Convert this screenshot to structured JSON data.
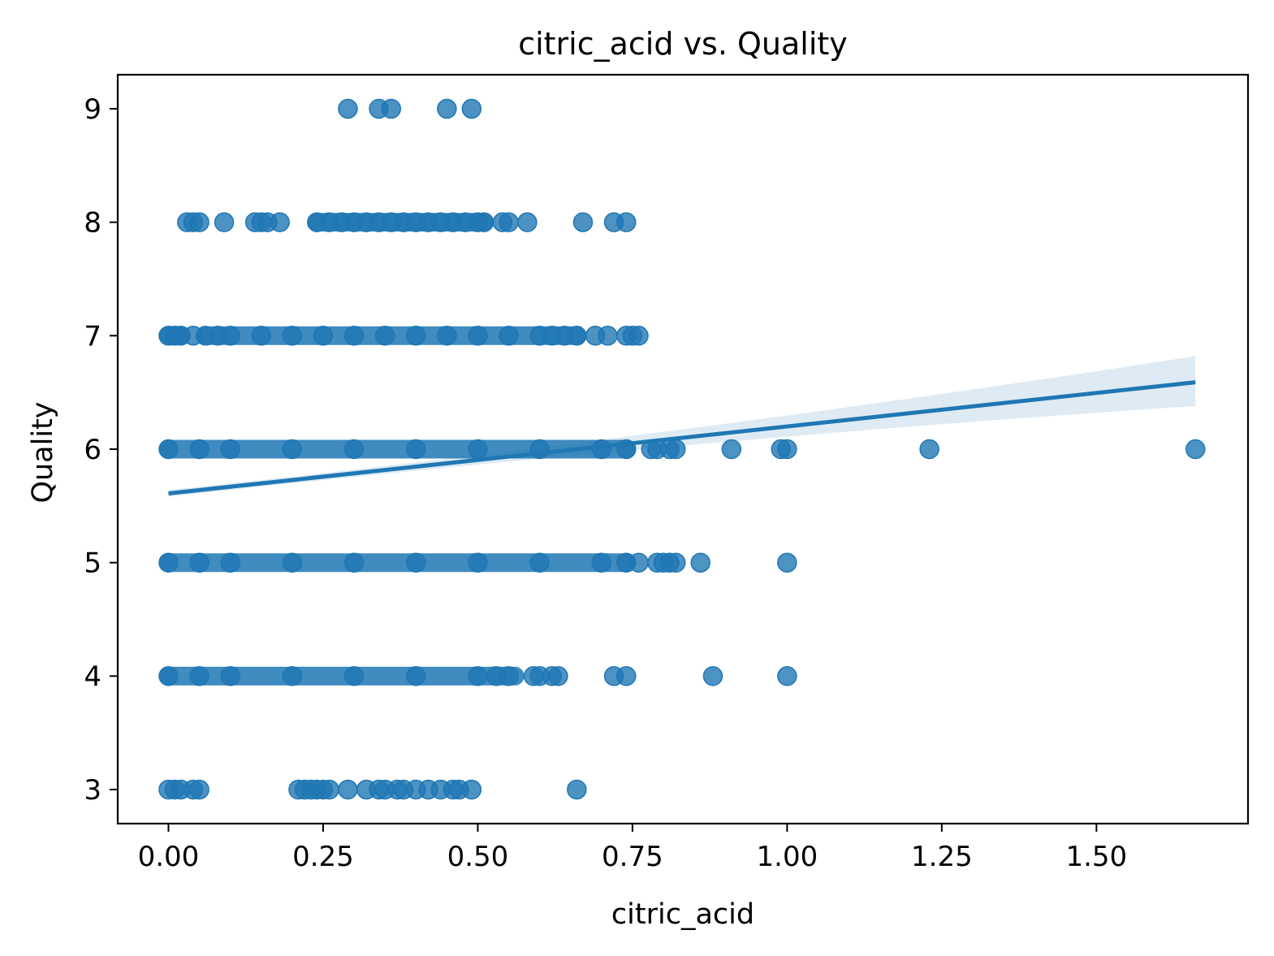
{
  "chart_data": {
    "type": "scatter",
    "title": "citric_acid vs. Quality",
    "xlabel": "citric_acid",
    "ylabel": "Quality",
    "xlim": [
      -0.082,
      1.745
    ],
    "ylim": [
      2.7,
      9.3
    ],
    "x_ticks": [
      0.0,
      0.25,
      0.5,
      0.75,
      1.0,
      1.25,
      1.5
    ],
    "x_tick_labels": [
      "0.00",
      "0.25",
      "0.50",
      "0.75",
      "1.00",
      "1.25",
      "1.50"
    ],
    "y_ticks": [
      3,
      4,
      5,
      6,
      7,
      8,
      9
    ],
    "y_tick_labels": [
      "3",
      "4",
      "5",
      "6",
      "7",
      "8",
      "9"
    ],
    "grid": false,
    "legend": "none",
    "colors": {
      "points": "#1f77b4",
      "line": "#1f77b4",
      "band": "#1f77b4"
    },
    "series": [
      {
        "quality": 9,
        "dense_ranges": [],
        "x": [
          0.29,
          0.34,
          0.36,
          0.45,
          0.49
        ]
      },
      {
        "quality": 8,
        "dense_ranges": [
          [
            0.24,
            0.51
          ]
        ],
        "x": [
          0.03,
          0.04,
          0.05,
          0.09,
          0.14,
          0.15,
          0.16,
          0.18,
          0.24,
          0.26,
          0.28,
          0.3,
          0.32,
          0.34,
          0.36,
          0.38,
          0.4,
          0.42,
          0.44,
          0.46,
          0.48,
          0.5,
          0.51,
          0.54,
          0.55,
          0.58,
          0.67,
          0.72,
          0.74
        ]
      },
      {
        "quality": 7,
        "dense_ranges": [
          [
            0.0,
            0.02
          ],
          [
            0.06,
            0.66
          ]
        ],
        "x": [
          0.0,
          0.01,
          0.02,
          0.04,
          0.06,
          0.08,
          0.1,
          0.15,
          0.2,
          0.25,
          0.3,
          0.35,
          0.4,
          0.45,
          0.5,
          0.55,
          0.6,
          0.62,
          0.64,
          0.66,
          0.69,
          0.71,
          0.74,
          0.75,
          0.76
        ]
      },
      {
        "quality": 6,
        "dense_ranges": [
          [
            0.0,
            0.74
          ]
        ],
        "x": [
          0.0,
          0.05,
          0.1,
          0.2,
          0.3,
          0.4,
          0.5,
          0.6,
          0.7,
          0.74,
          0.78,
          0.79,
          0.81,
          0.82,
          0.91,
          0.99,
          1.0,
          1.23,
          1.66
        ]
      },
      {
        "quality": 5,
        "dense_ranges": [
          [
            0.0,
            0.74
          ]
        ],
        "x": [
          0.0,
          0.05,
          0.1,
          0.2,
          0.3,
          0.4,
          0.5,
          0.6,
          0.7,
          0.74,
          0.76,
          0.79,
          0.8,
          0.81,
          0.82,
          0.86,
          1.0
        ]
      },
      {
        "quality": 4,
        "dense_ranges": [
          [
            0.0,
            0.56
          ]
        ],
        "x": [
          0.0,
          0.05,
          0.1,
          0.2,
          0.3,
          0.4,
          0.5,
          0.53,
          0.55,
          0.59,
          0.6,
          0.62,
          0.63,
          0.72,
          0.74,
          0.88,
          1.0
        ]
      },
      {
        "quality": 3,
        "dense_ranges": [],
        "x": [
          0.0,
          0.01,
          0.02,
          0.04,
          0.05,
          0.21,
          0.22,
          0.23,
          0.24,
          0.25,
          0.26,
          0.29,
          0.32,
          0.34,
          0.35,
          0.37,
          0.38,
          0.4,
          0.42,
          0.44,
          0.46,
          0.47,
          0.49,
          0.66
        ]
      }
    ],
    "regression": {
      "x_range": [
        0.0,
        1.66
      ],
      "y_at_x_min": 5.61,
      "y_at_x_max": 6.59,
      "ci_at_x_min": [
        5.58,
        5.64
      ],
      "ci_at_x_max": [
        6.38,
        6.82
      ]
    }
  }
}
